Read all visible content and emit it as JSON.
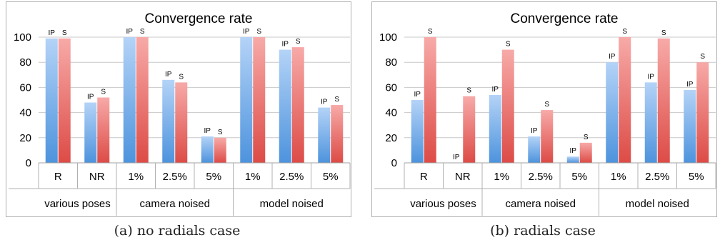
{
  "chart_data": [
    {
      "type": "bar",
      "title": "Convergence rate",
      "ylim": [
        0,
        100
      ],
      "yticks": [
        0,
        20,
        40,
        60,
        80,
        100
      ],
      "categories": [
        "R",
        "NR",
        "1%",
        "2.5%",
        "5%",
        "1%",
        "2.5%",
        "5%"
      ],
      "groups": [
        {
          "label": "various poses",
          "span": 2
        },
        {
          "label": "camera noised",
          "span": 3
        },
        {
          "label": "model noised",
          "span": 3
        }
      ],
      "series": [
        {
          "name": "IP",
          "values": [
            99,
            48,
            100,
            66,
            21,
            100,
            90,
            44
          ]
        },
        {
          "name": "S",
          "values": [
            99,
            52,
            100,
            64,
            20,
            100,
            92,
            46
          ]
        }
      ],
      "grid": true,
      "colors": {
        "IP": "#6aaeea",
        "S": "#ec6f6a"
      }
    },
    {
      "type": "bar",
      "title": "Convergence rate",
      "ylim": [
        0,
        100
      ],
      "yticks": [
        0,
        20,
        40,
        60,
        80,
        100
      ],
      "categories": [
        "R",
        "NR",
        "1%",
        "2.5%",
        "5%",
        "1%",
        "2.5%",
        "5%"
      ],
      "groups": [
        {
          "label": "various poses",
          "span": 2
        },
        {
          "label": "camera noised",
          "span": 3
        },
        {
          "label": "model noised",
          "span": 3
        }
      ],
      "series": [
        {
          "name": "IP",
          "values": [
            50,
            0,
            54,
            21,
            5,
            80,
            64,
            58
          ]
        },
        {
          "name": "S",
          "values": [
            100,
            53,
            90,
            42,
            16,
            100,
            99,
            80
          ]
        }
      ],
      "grid": true,
      "colors": {
        "IP": "#6aaeea",
        "S": "#ec6f6a"
      }
    }
  ],
  "captions": [
    "(a)  no radials case",
    "(b)  radials case"
  ]
}
